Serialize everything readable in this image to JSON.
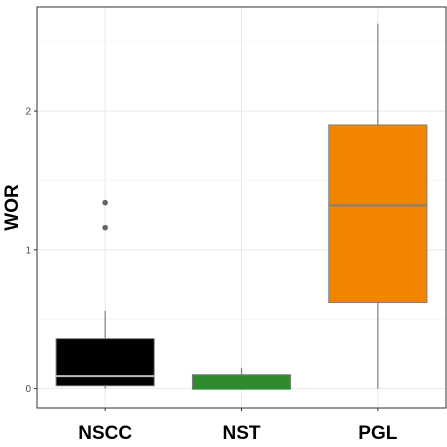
{
  "chart_data": {
    "type": "boxplot",
    "title": "",
    "xlabel": "",
    "ylabel": "WOR",
    "ylim": [
      -0.14,
      2.75
    ],
    "y_ticks": [
      0,
      1,
      2
    ],
    "y_tick_labels": [
      "0",
      "1",
      "2"
    ],
    "grid": true,
    "categories": [
      "NSCC",
      "NST",
      "PGL"
    ],
    "boxes": [
      {
        "category": "NSCC",
        "min": 0.0,
        "q1": 0.02,
        "median": 0.09,
        "q3": 0.36,
        "max": 0.56,
        "outliers": [
          1.16,
          1.34
        ],
        "color": "#000000",
        "median_color": "#bfbfbf"
      },
      {
        "category": "NST",
        "min": 0.0,
        "q1": 0.0,
        "median": 0.0,
        "q3": 0.1,
        "max": 0.15,
        "outliers": [],
        "color": "#2e8b2e",
        "median_color": "#2e8b2e"
      },
      {
        "category": "PGL",
        "min": 0.0,
        "q1": 0.62,
        "median": 1.32,
        "q3": 1.9,
        "max": 2.63,
        "outliers": [],
        "color": "#f28500",
        "median_color": "#808080"
      }
    ]
  }
}
